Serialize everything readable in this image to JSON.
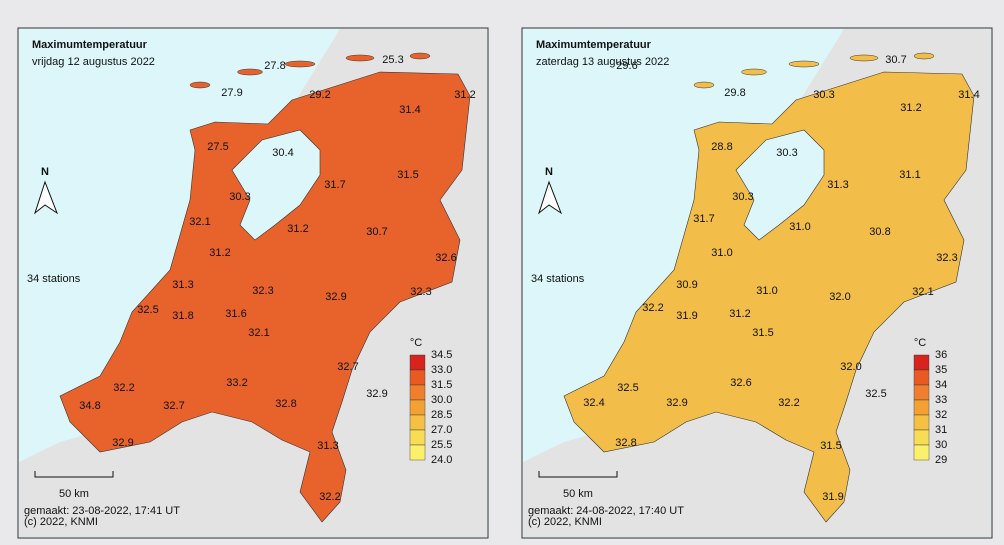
{
  "panels": [
    {
      "title": "Maximumtemperatuur",
      "subtitle": "vrijdag 12 augustus 2022",
      "stations_note": "34 stations",
      "north": "N",
      "legend": {
        "unit": "°C",
        "labels": [
          "34.5",
          "33.0",
          "31.5",
          "30.0",
          "28.5",
          "27.0",
          "25.5",
          "24.0"
        ]
      },
      "scale": "50 km",
      "made": "gemaakt: 23-08-2022, 17:41 UT",
      "copyright": "(c) 2022, KNMI",
      "labels": [
        "27.8",
        "25.3",
        "27.9",
        "29.2",
        "31.4",
        "31.2",
        "27.5",
        "30.4",
        "31.7",
        "31.5",
        "30.3",
        "32.1",
        "31.2",
        "30.7",
        "31.2",
        "32.6",
        "31.3",
        "32.3",
        "32.9",
        "32.3",
        "32.5",
        "31.8",
        "31.6",
        "32.1",
        "32.7",
        "32.2",
        "33.2",
        "32.9",
        "34.8",
        "32.7",
        "32.8",
        "31.3",
        "32.9",
        "32.2"
      ]
    },
    {
      "title": "Maximumtemperatuur",
      "subtitle": "zaterdag 13 augustus 2022",
      "stations_note": "34 stations",
      "north": "N",
      "legend": {
        "unit": "°C",
        "labels": [
          "36",
          "35",
          "34",
          "33",
          "32",
          "31",
          "30",
          "29"
        ]
      },
      "scale": "50 km",
      "made": "gemaakt: 24-08-2022, 17:40 UT",
      "copyright": "(c) 2022, KNMI",
      "labels": [
        "29.6",
        "30.7",
        "29.8",
        "30.3",
        "31.4",
        "31.2",
        "28.8",
        "30.3",
        "31.3",
        "31.1",
        "30.3",
        "31.7",
        "31.0",
        "30.8",
        "31.0",
        "32.3",
        "30.9",
        "31.0",
        "32.0",
        "32.1",
        "32.2",
        "31.9",
        "31.2",
        "31.5",
        "32.0",
        "32.5",
        "32.6",
        "32.5",
        "32.4",
        "32.9",
        "32.2",
        "31.5",
        "32.8",
        "31.9"
      ]
    }
  ]
}
